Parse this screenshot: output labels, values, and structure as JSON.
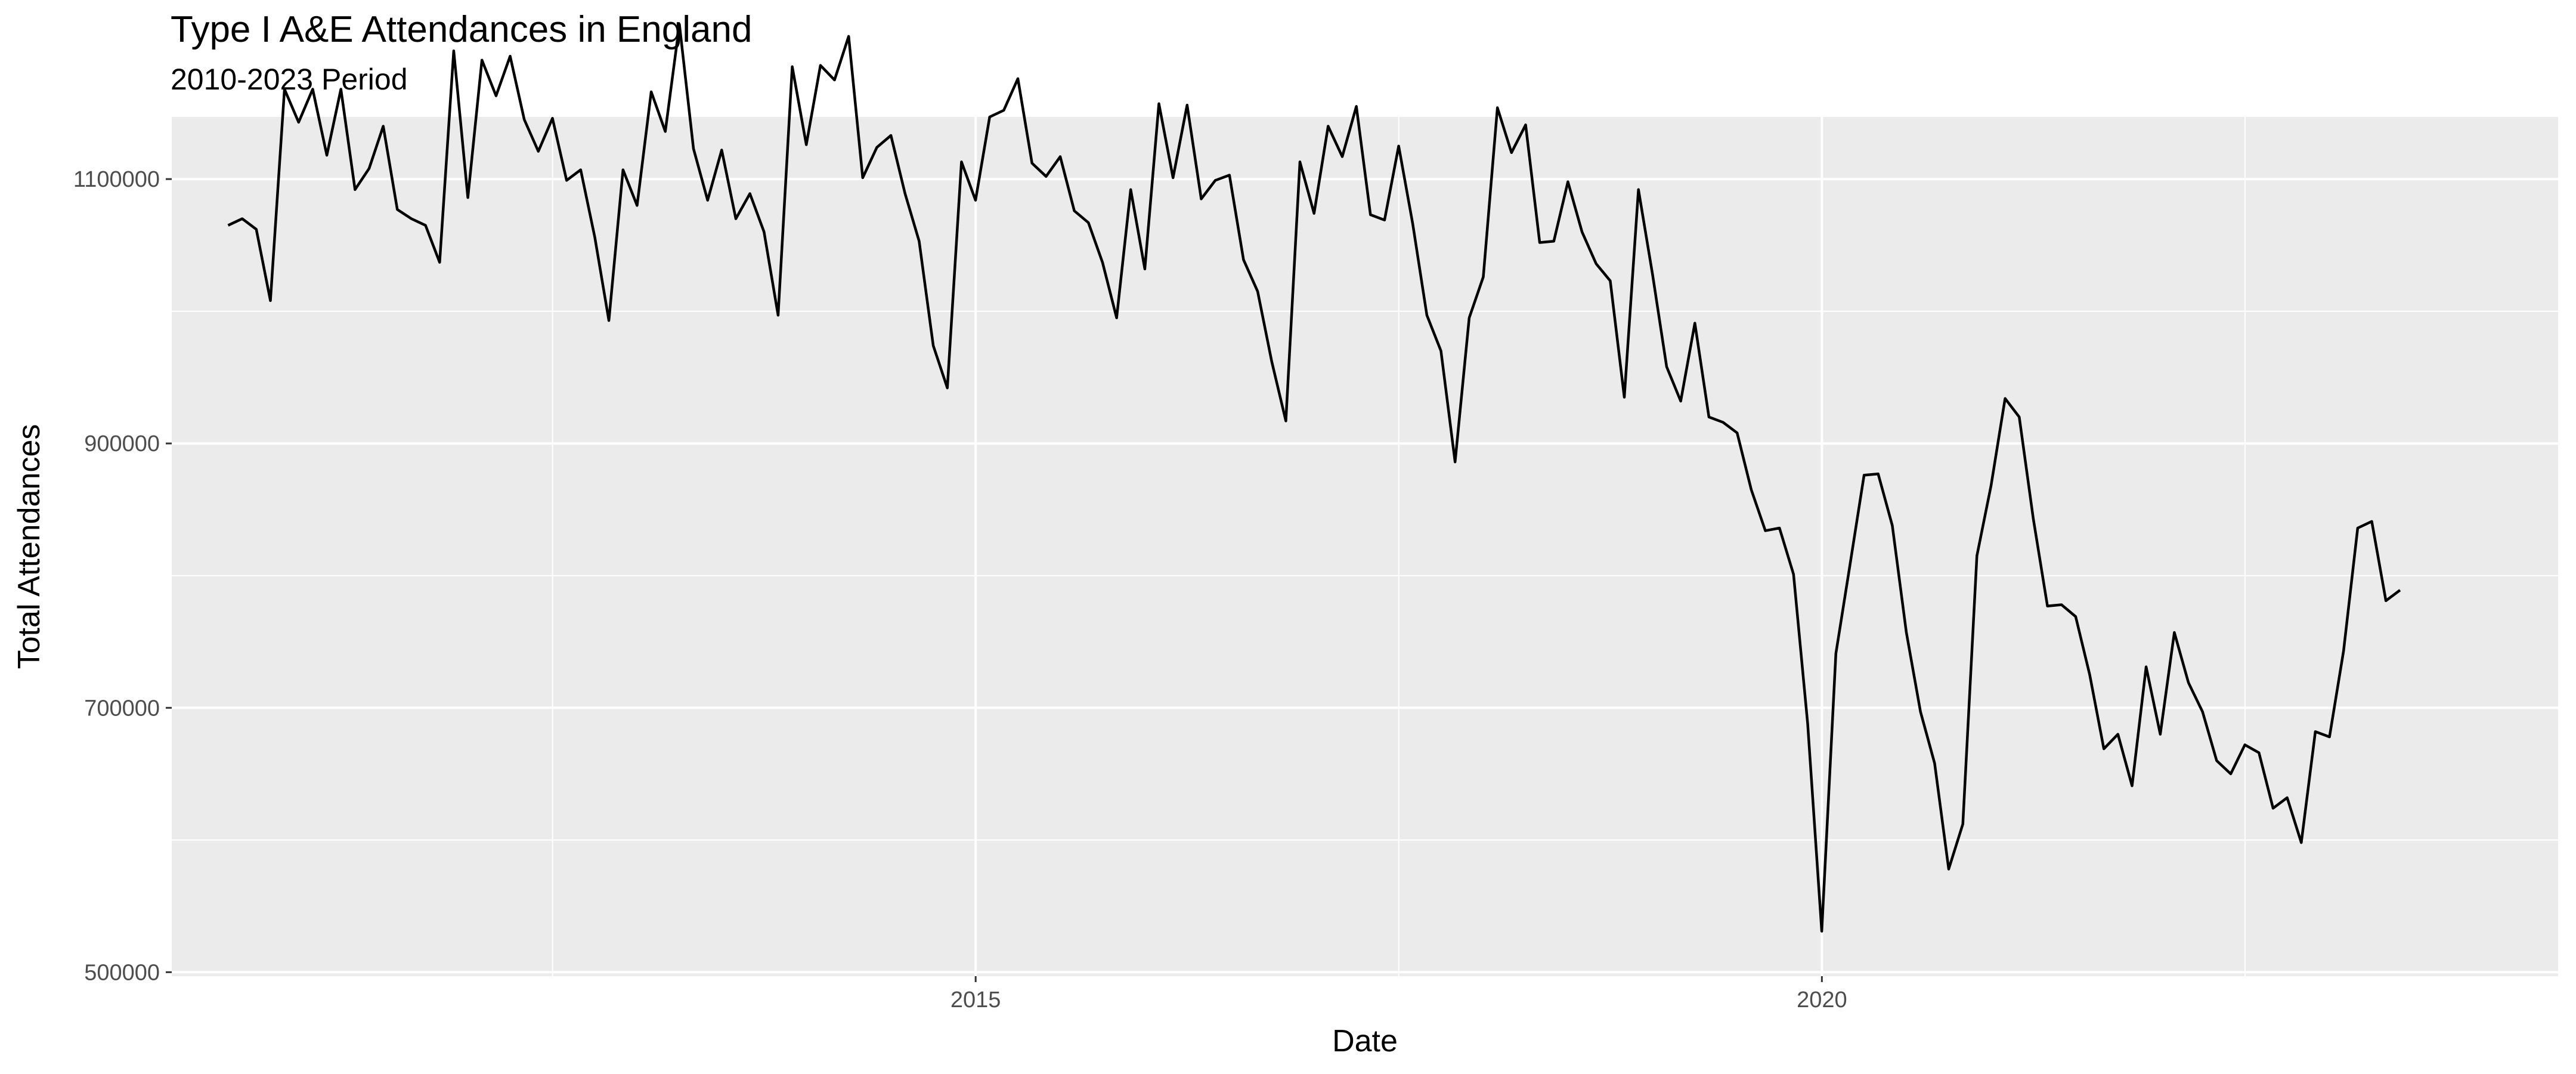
{
  "chart_data": {
    "type": "line",
    "title": "Type I A&E Attendances in England",
    "subtitle": "2010-2023 Period",
    "xlabel": "Date",
    "ylabel": "Total Attendances",
    "xlim": [
      2010.25,
      2024.35
    ],
    "ylim": [
      497000,
      1147000
    ],
    "x_ticks": [
      2015,
      2020
    ],
    "x_tick_labels": [
      "2015",
      "2020"
    ],
    "y_ticks": [
      500000,
      700000,
      900000,
      1100000
    ],
    "y_tick_labels": [
      "500000",
      "700000",
      "900000",
      "1100000"
    ],
    "x_minor_ticks": [
      2012.5,
      2017.5,
      2022.5
    ],
    "y_minor_ticks": [
      600000,
      800000,
      1000000
    ],
    "grid": true,
    "legend": "none",
    "line_color": "#000000",
    "panel_background": "#ebebeb",
    "grid_color": "#ffffff",
    "series": [
      {
        "x_start": 2010.583,
        "step": 0.08333,
        "values": [
          1065000,
          1070000,
          1062000,
          1008000,
          1168000,
          1143000,
          1168000,
          1118000,
          1168000,
          1092000,
          1108000,
          1140000,
          1077000,
          1070000,
          1065000,
          1037000,
          1197000,
          1086000,
          1190000,
          1163000,
          1193000,
          1145000,
          1121000,
          1146000,
          1099000,
          1107000,
          1056000,
          993000,
          1107000,
          1080000,
          1166000,
          1136000,
          1217000,
          1123000,
          1084000,
          1122000,
          1070000,
          1089000,
          1060000,
          997000,
          1185000,
          1126000,
          1186000,
          1175000,
          1208000,
          1101000,
          1124000,
          1133000,
          1089000,
          1053000,
          974000,
          942000,
          1113000,
          1084000,
          1147000,
          1152000,
          1176000,
          1112000,
          1102000,
          1117000,
          1076000,
          1067000,
          1037000,
          995000,
          1092000,
          1032000,
          1157000,
          1101000,
          1156000,
          1085000,
          1099000,
          1103000,
          1039000,
          1015000,
          962000,
          917000,
          1113000,
          1074000,
          1140000,
          1117000,
          1155000,
          1073000,
          1069000,
          1125000,
          1066000,
          997000,
          970000,
          886000,
          995000,
          1026000,
          1154000,
          1120000,
          1141000,
          1052000,
          1053000,
          1098000,
          1060000,
          1036000,
          1023000,
          935000,
          1092000,
          1028000,
          958000,
          932000,
          991000,
          920000,
          916000,
          908000,
          865000,
          834000,
          836000,
          801000,
          688000,
          531000,
          741000,
          808000,
          876000,
          877000,
          838000,
          757000,
          697000,
          658000,
          578000,
          612000,
          815000,
          868000,
          934000,
          920000,
          843000,
          777000,
          778000,
          769000,
          725000,
          669000,
          680000,
          641000,
          731000,
          680000,
          757000,
          719000,
          697000,
          660000,
          650000,
          672000,
          666000,
          624000,
          632000,
          598000,
          682000,
          678000,
          743000,
          836000,
          841000,
          781000,
          789000
        ]
      }
    ]
  }
}
